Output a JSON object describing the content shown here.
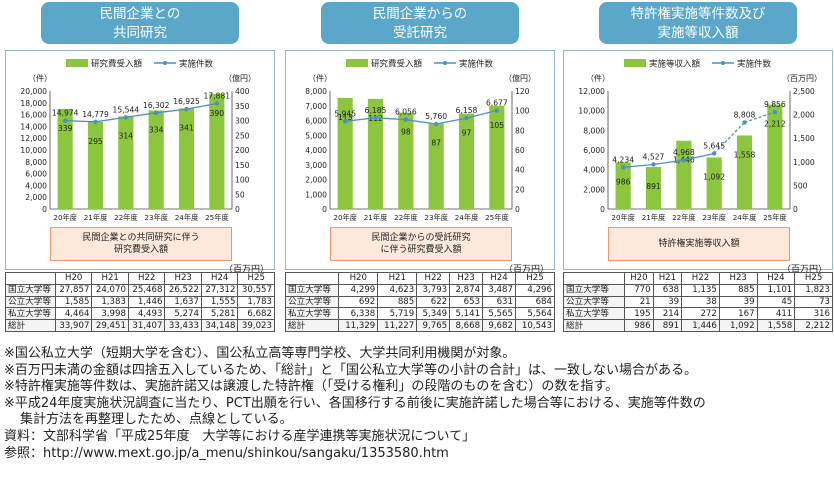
{
  "panels": [
    {
      "title_lines": [
        "民間企業との",
        "共同研究"
      ],
      "caption_lines": [
        "民間企業との共同研究に伴う",
        "研究費受入額"
      ],
      "unit": "（百万円）",
      "headers": [
        "",
        "H20",
        "H21",
        "H22",
        "H23",
        "H24",
        "H25"
      ],
      "rows": [
        {
          "label": "国立大学等",
          "values": [
            "27,857",
            "24,070",
            "25,468",
            "26,522",
            "27,312",
            "30,557"
          ]
        },
        {
          "label": "公立大学等",
          "values": [
            "1,585",
            "1,383",
            "1,446",
            "1,637",
            "1,555",
            "1,783"
          ]
        },
        {
          "label": "私立大学等",
          "values": [
            "4,464",
            "3,998",
            "4,493",
            "5,274",
            "5,281",
            "6,682"
          ]
        },
        {
          "label": "総計",
          "values": [
            "33,907",
            "29,451",
            "31,407",
            "33,433",
            "34,148",
            "39,023"
          ]
        }
      ]
    },
    {
      "title_lines": [
        "民間企業からの",
        "受託研究"
      ],
      "caption_lines": [
        "民間企業からの受託研究",
        "に伴う研究費受入額"
      ],
      "unit": "（百万円）",
      "headers": [
        "",
        "H20",
        "H21",
        "H22",
        "H23",
        "H24",
        "H25"
      ],
      "rows": [
        {
          "label": "国立大学等",
          "values": [
            "4,299",
            "4,623",
            "3,793",
            "2,874",
            "3,487",
            "4,296"
          ]
        },
        {
          "label": "公立大学等",
          "values": [
            "692",
            "885",
            "622",
            "653",
            "631",
            "684"
          ]
        },
        {
          "label": "私立大学等",
          "values": [
            "6,338",
            "5,719",
            "5,349",
            "5,141",
            "5,565",
            "5,564"
          ]
        },
        {
          "label": "総計",
          "values": [
            "11,329",
            "11,227",
            "9,765",
            "8,668",
            "9,682",
            "10,543"
          ]
        }
      ]
    },
    {
      "title_lines": [
        "特許権実施等件数及び",
        "実施等収入額"
      ],
      "caption_lines": [
        "特許権実施等収入額"
      ],
      "unit": "（百万円）",
      "headers": [
        "",
        "H20",
        "H21",
        "H22",
        "H23",
        "H24",
        "H25"
      ],
      "rows": [
        {
          "label": "国立大学等",
          "values": [
            "770",
            "638",
            "1,135",
            "885",
            "1,101",
            "1,823"
          ]
        },
        {
          "label": "公立大学等",
          "values": [
            "21",
            "39",
            "38",
            "39",
            "45",
            "73"
          ]
        },
        {
          "label": "私立大学等",
          "values": [
            "195",
            "214",
            "272",
            "167",
            "411",
            "316"
          ]
        },
        {
          "label": "総計",
          "values": [
            "986",
            "891",
            "1,446",
            "1,092",
            "1,558",
            "2,212"
          ]
        }
      ]
    }
  ],
  "chart_data": [
    {
      "type": "bar+line",
      "categories": [
        "20年度",
        "21年度",
        "22年度",
        "23年度",
        "24年度",
        "25年度"
      ],
      "series": [
        {
          "name": "研究費受入額",
          "type": "bar",
          "axis": "right",
          "values": [
            339,
            295,
            314,
            334,
            341,
            390
          ]
        },
        {
          "name": "実施件数",
          "type": "line",
          "axis": "left",
          "values": [
            14974,
            14779,
            15544,
            16302,
            16925,
            17881
          ]
        }
      ],
      "bar_labels": [
        "339",
        "295",
        "314",
        "334",
        "341",
        "390"
      ],
      "line_labels": [
        "14,974",
        "14,779",
        "15,544",
        "16,302",
        "16,925",
        "17,881"
      ],
      "y_left": {
        "unit": "（件）",
        "min": 0,
        "max": 20000,
        "ticks": [
          "0",
          "2,000",
          "4,000",
          "6,000",
          "8,000",
          "10,000",
          "12,000",
          "14,000",
          "16,000",
          "18,000",
          "20,000"
        ]
      },
      "y_right": {
        "unit": "（億円）",
        "min": 0,
        "max": 400,
        "ticks": [
          "0",
          "50",
          "100",
          "150",
          "200",
          "250",
          "300",
          "350",
          "400"
        ]
      },
      "legend": "top"
    },
    {
      "type": "bar+line",
      "categories": [
        "20年度",
        "21年度",
        "22年度",
        "23年度",
        "24年度",
        "25年度"
      ],
      "series": [
        {
          "name": "研究費受入額",
          "type": "bar",
          "axis": "right",
          "values": [
            113,
            112,
            98,
            87,
            97,
            105
          ]
        },
        {
          "name": "実施件数",
          "type": "line",
          "axis": "left",
          "values": [
            5945,
            6185,
            6056,
            5760,
            6158,
            6677
          ]
        }
      ],
      "bar_labels": [
        "113",
        "112",
        "98",
        "87",
        "97",
        "105"
      ],
      "line_labels": [
        "5,945",
        "6,185",
        "6,056",
        "5,760",
        "6,158",
        "6,677"
      ],
      "y_left": {
        "unit": "（件）",
        "min": 0,
        "max": 8000,
        "ticks": [
          "0",
          "1,000",
          "2,000",
          "3,000",
          "4,000",
          "5,000",
          "6,000",
          "7,000",
          "8,000"
        ]
      },
      "y_right": {
        "unit": "（億円）",
        "min": 0,
        "max": 120,
        "ticks": [
          "0",
          "20",
          "40",
          "60",
          "80",
          "100",
          "120"
        ]
      },
      "legend": "top"
    },
    {
      "type": "bar+line",
      "categories": [
        "20年度",
        "21年度",
        "22年度",
        "23年度",
        "24年度",
        "25年度"
      ],
      "series": [
        {
          "name": "実施等収入額",
          "type": "bar",
          "axis": "right",
          "values": [
            986,
            891,
            1446,
            1092,
            1558,
            2212
          ]
        },
        {
          "name": "実施件数",
          "type": "line",
          "axis": "left",
          "values": [
            4234,
            4527,
            4968,
            5645,
            8808,
            9856
          ],
          "dashed_from_index": 3
        }
      ],
      "bar_labels": [
        "986",
        "891",
        "1,446",
        "1,092",
        "1,558",
        "2,212"
      ],
      "line_labels": [
        "4,234",
        "4,527",
        "4,968",
        "5,645",
        "8,808",
        "9,856"
      ],
      "y_left": {
        "unit": "（件）",
        "min": 0,
        "max": 12000,
        "ticks": [
          "0",
          "2,000",
          "4,000",
          "6,000",
          "8,000",
          "10,000",
          "12,000"
        ]
      },
      "y_right": {
        "unit": "（百万円）",
        "min": 0,
        "max": 2500,
        "ticks": [
          "0",
          "500",
          "1,000",
          "1,500",
          "2,000",
          "2,500"
        ]
      },
      "legend": "top"
    }
  ],
  "notes": [
    "※国公私立大学（短期大学を含む）、国公私立高等専門学校、大学共同利用機関が対象。",
    "※百万円未満の金額は四捨五入しているため、「総計」と「国公私立大学等の小計の合計」は、一致しない場合がある。",
    "※特許権実施等件数は、実施許諾又は譲渡した特許権（「受ける権利」の段階のものを含む）の数を指す。",
    "※平成24年度実施状況調査に当たり、PCT出願を行い、各国移行する前後に実施許諾した場合等における、実施等件数の",
    "集計方法を再整理したため、点線としている。",
    "資料：文部科学省「平成25年度　大学等における産学連携等実施状況について」",
    "参照：http://www.mext.go.jp/a_menu/shinkou/sangaku/1353580.htm"
  ],
  "colors": {
    "bar": "#8cc63f",
    "bar_dark": "#6ba82b",
    "line": "#4a8fc7",
    "title_bg": "#5aa7c9"
  }
}
